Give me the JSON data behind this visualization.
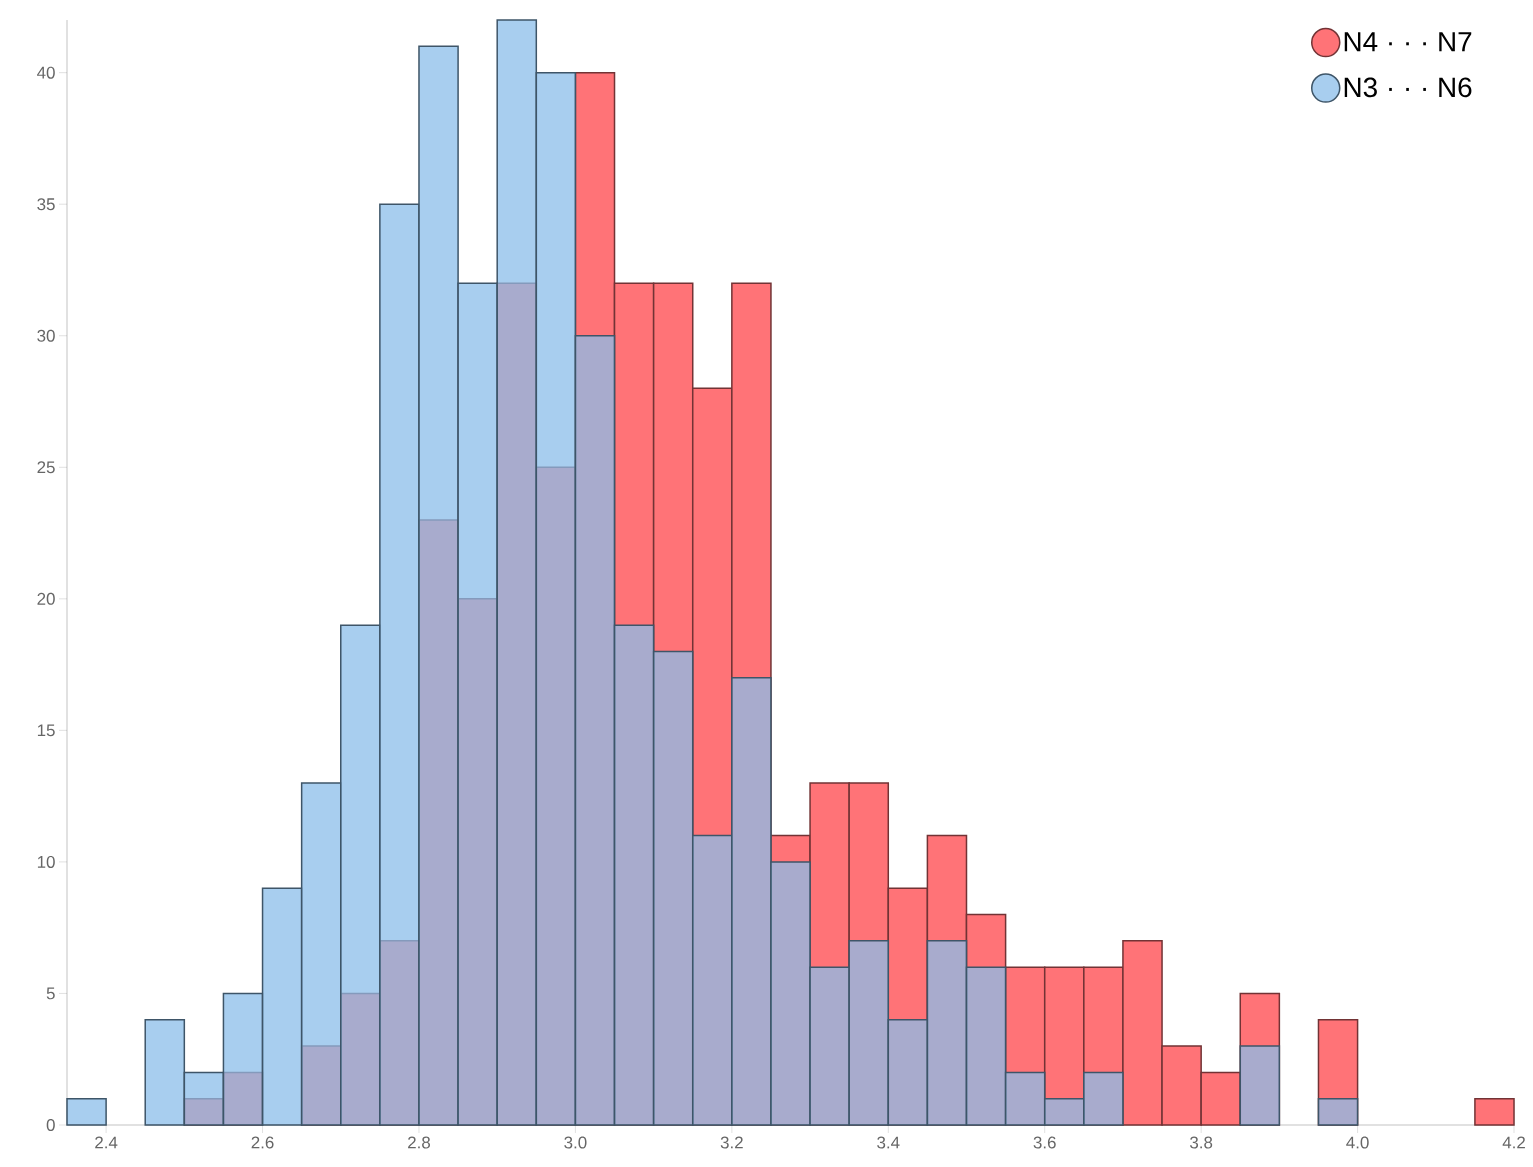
{
  "chart_data": {
    "type": "histogram",
    "bins": [
      2.35,
      2.4,
      2.45,
      2.5,
      2.55,
      2.6,
      2.65,
      2.7,
      2.75,
      2.8,
      2.85,
      2.9,
      2.95,
      3.0,
      3.05,
      3.1,
      3.15,
      3.2,
      3.25,
      3.3,
      3.35,
      3.4,
      3.45,
      3.5,
      3.55,
      3.6,
      3.65,
      3.7,
      3.75,
      3.8,
      3.85,
      3.9,
      3.95,
      4.0,
      4.05,
      4.1,
      4.15,
      4.2
    ],
    "series": [
      {
        "name": "N4 · · · N7",
        "color": "#ff7377",
        "values": [
          0,
          0,
          0,
          1,
          2,
          0,
          3,
          5,
          7,
          23,
          20,
          32,
          25,
          40,
          32,
          32,
          28,
          32,
          11,
          13,
          13,
          9,
          11,
          8,
          6,
          6,
          6,
          7,
          3,
          2,
          5,
          0,
          4,
          0,
          0,
          0,
          1
        ]
      },
      {
        "name": "N3 · · · N6",
        "color": "#8bbde9",
        "values": [
          1,
          0,
          4,
          2,
          5,
          9,
          13,
          19,
          35,
          41,
          32,
          42,
          40,
          30,
          19,
          18,
          11,
          17,
          10,
          6,
          7,
          4,
          7,
          6,
          2,
          1,
          2,
          0,
          0,
          0,
          3,
          0,
          1,
          0,
          0,
          0,
          0
        ]
      }
    ],
    "xlim": [
      2.35,
      4.2
    ],
    "ylim": [
      0,
      42
    ],
    "xticks": [
      2.4,
      2.6,
      2.8,
      {
        "value": 3,
        "label": "3.0"
      },
      3.2,
      3.4,
      3.6,
      3.8,
      {
        "value": 4,
        "label": "4.0"
      },
      4.2
    ],
    "yticks": [
      0,
      5,
      10,
      15,
      20,
      25,
      30,
      35,
      40
    ],
    "grid": false,
    "legend": "top right"
  }
}
